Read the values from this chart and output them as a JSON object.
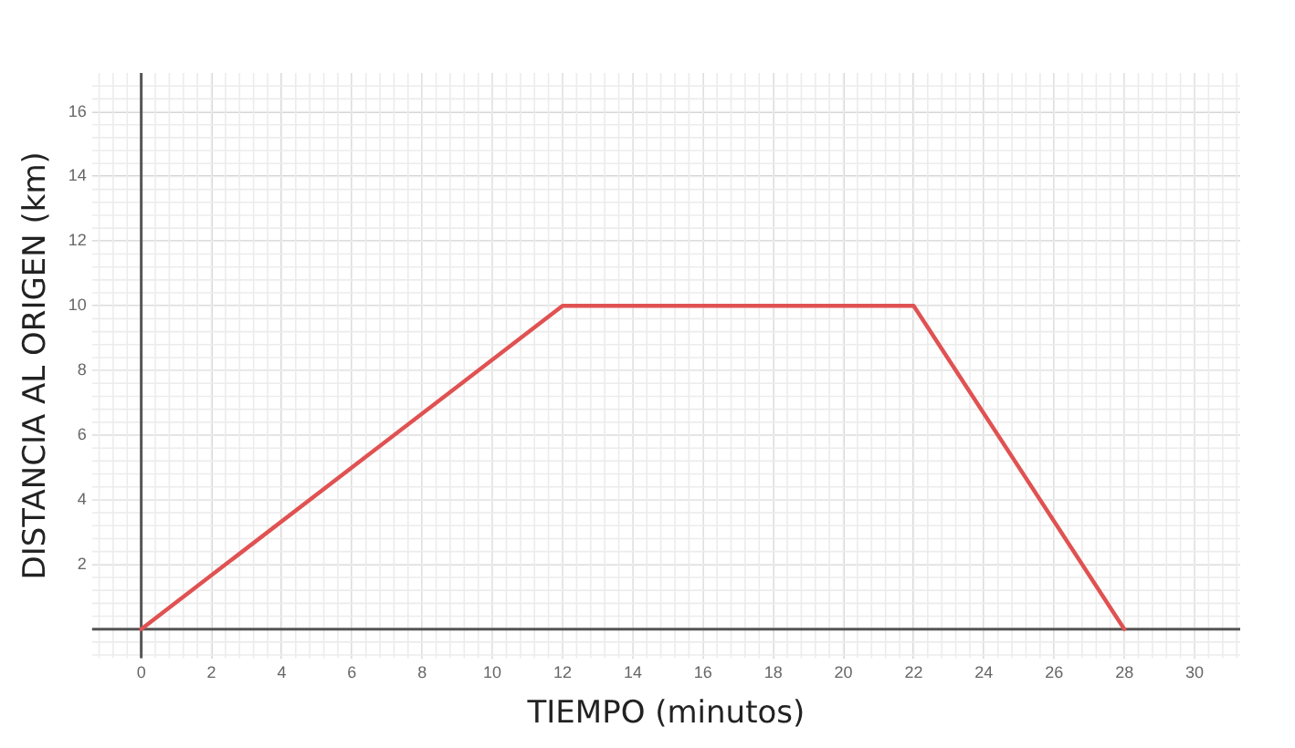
{
  "chart_data": {
    "type": "line",
    "xlabel": "TIEMPO (minutos)",
    "ylabel": "DISTANCIA AL ORIGEN (km)",
    "x": [
      0,
      12,
      22,
      28
    ],
    "series": [
      {
        "color": "#e05252",
        "values": [
          0,
          10,
          10,
          0
        ]
      }
    ],
    "xlim": [
      -1.4,
      31.3
    ],
    "ylim": [
      -0.9,
      17.2
    ],
    "xticks": [
      0,
      2,
      4,
      6,
      8,
      10,
      12,
      14,
      16,
      18,
      20,
      22,
      24,
      26,
      28,
      30
    ],
    "yticks": [
      {
        "value": 0,
        "label": null
      },
      2,
      4,
      6,
      8,
      10,
      12,
      14,
      16
    ],
    "grid": true,
    "legend": false,
    "marker": "none",
    "line_style": "solid"
  }
}
